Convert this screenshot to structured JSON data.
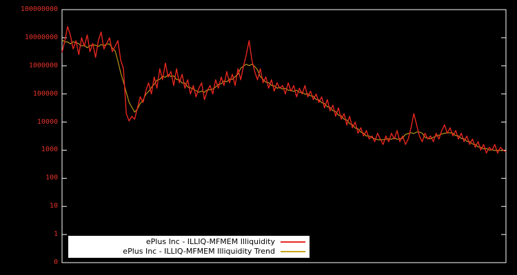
{
  "chart_data": {
    "type": "line",
    "title": "",
    "background_color": "#000000",
    "plot_border_color": "#ffffff",
    "y_axis": {
      "scale": "log",
      "tick_labels": [
        "100000000",
        "10000000",
        "1000000",
        "100000",
        "10000",
        "1000",
        "100",
        "10",
        "1",
        "0"
      ],
      "label_color": "#e5332a",
      "range_log10": [
        8,
        -1
      ]
    },
    "x_axis": {
      "tick_labels": [],
      "labels_visible": false
    },
    "legend": {
      "position": "bottom-left-inside",
      "background": "#ffffff",
      "text_color": "#000000"
    },
    "series": [
      {
        "name": "ePlus Inc - ILLIQ-MFMEM Illiquidity",
        "color": "#e8261f",
        "values": [
          3000000,
          7900000,
          25000000,
          12000000,
          4000000,
          7900000,
          2500000,
          10000000,
          5000000,
          12600000,
          3200000,
          6300000,
          2000000,
          7900000,
          16000000,
          4000000,
          6300000,
          10000000,
          3200000,
          5000000,
          7900000,
          1600000,
          790000,
          20000,
          11000,
          16000,
          12600,
          32000,
          79000,
          50000,
          126000,
          250000,
          100000,
          400000,
          160000,
          790000,
          320000,
          1260000,
          400000,
          630000,
          200000,
          790000,
          250000,
          500000,
          160000,
          320000,
          100000,
          200000,
          79000,
          160000,
          250000,
          63000,
          126000,
          200000,
          100000,
          320000,
          160000,
          400000,
          200000,
          630000,
          250000,
          500000,
          200000,
          790000,
          320000,
          1000000,
          2500000,
          7900000,
          1600000,
          630000,
          320000,
          790000,
          250000,
          400000,
          160000,
          320000,
          126000,
          250000,
          160000,
          200000,
          100000,
          250000,
          126000,
          200000,
          79000,
          160000,
          100000,
          200000,
          79000,
          126000,
          63000,
          100000,
          50000,
          79000,
          32000,
          63000,
          25000,
          40000,
          16000,
          32000,
          12600,
          20000,
          7900,
          16000,
          6300,
          10000,
          4000,
          6300,
          3200,
          5000,
          2500,
          3200,
          2000,
          4000,
          2500,
          1600,
          3200,
          2000,
          4000,
          2500,
          5000,
          2000,
          3200,
          1600,
          2500,
          6300,
          20000,
          7900,
          3200,
          2000,
          4000,
          2500,
          3200,
          2000,
          4000,
          2500,
          5000,
          7900,
          4000,
          6300,
          3200,
          5000,
          2500,
          4000,
          2000,
          3200,
          1600,
          2500,
          1260,
          2000,
          1000,
          1600,
          790,
          1260,
          1000,
          1600,
          790,
          1260,
          1000,
          890
        ]
      },
      {
        "name": "ePlus Inc - ILLIQ-MFMEM Illiquidity Trend",
        "color": "#c8a41e",
        "derived": "7-point moving average in log space of the Illiquidity series",
        "values": []
      }
    ]
  }
}
